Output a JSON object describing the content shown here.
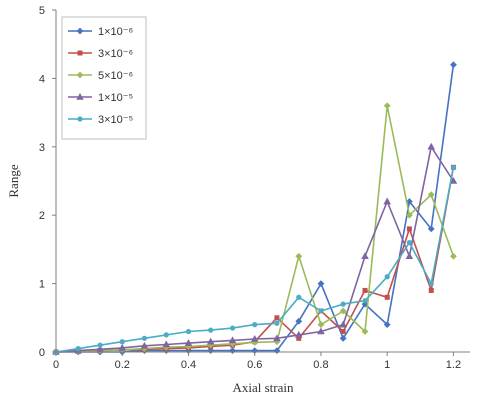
{
  "chart_data": {
    "type": "line",
    "xlabel": "Axial strain",
    "ylabel": "Range",
    "xlim": [
      0,
      1.25
    ],
    "ylim": [
      0,
      5
    ],
    "xticks": [
      "0",
      "0.2",
      "0.4",
      "0.6",
      "0.8",
      "1",
      "1.2"
    ],
    "yticks": [
      "0",
      "1",
      "2",
      "3",
      "4",
      "5"
    ],
    "grid": false,
    "legend_position": "top-left",
    "series": [
      {
        "name": "1×10⁻⁶",
        "color": "#4472C4",
        "marker": "diamond",
        "x": [
          0,
          0.067,
          0.133,
          0.2,
          0.267,
          0.333,
          0.4,
          0.467,
          0.533,
          0.6,
          0.667,
          0.733,
          0.8,
          0.867,
          0.933,
          1.0,
          1.067,
          1.133,
          1.2
        ],
        "y": [
          0,
          0,
          0,
          0,
          0.02,
          0.02,
          0.02,
          0.02,
          0.02,
          0.02,
          0.02,
          0.45,
          1.0,
          0.2,
          0.7,
          0.4,
          2.2,
          1.8,
          4.2
        ]
      },
      {
        "name": "3×10⁻⁶",
        "color": "#C0504D",
        "marker": "square",
        "x": [
          0,
          0.067,
          0.133,
          0.2,
          0.267,
          0.333,
          0.4,
          0.467,
          0.533,
          0.6,
          0.667,
          0.733,
          0.8,
          0.867,
          0.933,
          1.0,
          1.067,
          1.133,
          1.2
        ],
        "y": [
          0,
          0.01,
          0.02,
          0.03,
          0.04,
          0.05,
          0.06,
          0.08,
          0.1,
          0.15,
          0.5,
          0.2,
          0.6,
          0.3,
          0.9,
          0.8,
          1.8,
          0.9,
          2.7
        ]
      },
      {
        "name": "5×10⁻⁶",
        "color": "#9BBB59",
        "marker": "diamond",
        "x": [
          0,
          0.067,
          0.133,
          0.2,
          0.267,
          0.333,
          0.4,
          0.467,
          0.533,
          0.6,
          0.667,
          0.733,
          0.8,
          0.867,
          0.933,
          1.0,
          1.067,
          1.133,
          1.2
        ],
        "y": [
          0,
          0.01,
          0.02,
          0.03,
          0.05,
          0.07,
          0.08,
          0.1,
          0.12,
          0.14,
          0.15,
          1.4,
          0.4,
          0.6,
          0.3,
          3.6,
          2.0,
          2.3,
          1.4
        ]
      },
      {
        "name": "1×10⁻⁵",
        "color": "#8064A2",
        "marker": "triangle",
        "x": [
          0,
          0.067,
          0.133,
          0.2,
          0.267,
          0.333,
          0.4,
          0.467,
          0.533,
          0.6,
          0.667,
          0.733,
          0.8,
          0.867,
          0.933,
          1.0,
          1.067,
          1.133,
          1.2
        ],
        "y": [
          0,
          0.02,
          0.04,
          0.06,
          0.09,
          0.11,
          0.13,
          0.15,
          0.17,
          0.19,
          0.2,
          0.25,
          0.3,
          0.4,
          1.4,
          2.2,
          1.4,
          3.0,
          2.5
        ]
      },
      {
        "name": "3×10⁻⁵",
        "color": "#4BACC6",
        "marker": "circle",
        "x": [
          0,
          0.067,
          0.133,
          0.2,
          0.267,
          0.333,
          0.4,
          0.467,
          0.533,
          0.6,
          0.667,
          0.733,
          0.8,
          0.867,
          0.933,
          1.0,
          1.067,
          1.133,
          1.2
        ],
        "y": [
          0,
          0.05,
          0.1,
          0.15,
          0.2,
          0.25,
          0.3,
          0.32,
          0.35,
          0.4,
          0.42,
          0.8,
          0.6,
          0.7,
          0.75,
          1.1,
          1.6,
          1.0,
          2.7
        ]
      }
    ]
  }
}
